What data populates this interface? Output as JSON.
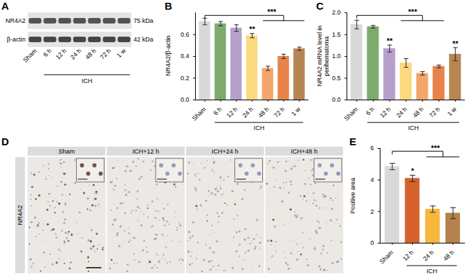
{
  "chart_data": [
    {
      "panel": "B",
      "type": "bar",
      "categories": [
        "Sham",
        "6 h",
        "12 h",
        "24 h",
        "48 h",
        "72 h",
        "1 w"
      ],
      "values": [
        0.72,
        0.7,
        0.66,
        0.59,
        0.29,
        0.4,
        0.47
      ],
      "errors": [
        0.03,
        0.02,
        0.03,
        0.02,
        0.02,
        0.02,
        0.015
      ],
      "colors": [
        "#d9d9d9",
        "#7faa6e",
        "#b7a0cc",
        "#fdd980",
        "#f4a66a",
        "#e8834a",
        "#b78552"
      ],
      "y_label": "NR4A2/β-actin",
      "ylim": [
        0,
        0.8
      ],
      "yticks": [
        {
          "value": 0,
          "label": "0.0"
        },
        0.2,
        0.4,
        0.6
      ],
      "group": {
        "label": "ICH",
        "categories": [
          "6 h",
          "12 h",
          "24 h",
          "48 h",
          "72 h",
          "1 w"
        ]
      },
      "annotations": [
        {
          "text": "**",
          "category": "24 h"
        }
      ],
      "brackets": [
        {
          "text": "***",
          "from": "Sham",
          "to": [
            "48 h",
            "72 h",
            "1 w"
          ]
        }
      ]
    },
    {
      "panel": "C",
      "type": "bar",
      "categories": [
        "Sham",
        "6 h",
        "12 h",
        "24 h",
        "48 h",
        "72 h",
        "1 w"
      ],
      "values": [
        1.73,
        1.68,
        1.18,
        0.85,
        0.61,
        0.77,
        1.05
      ],
      "errors": [
        0.1,
        0.03,
        0.08,
        0.1,
        0.04,
        0.03,
        0.15
      ],
      "colors": [
        "#d9d9d9",
        "#7faa6e",
        "#b7a0cc",
        "#fdd980",
        "#f4a66a",
        "#e8834a",
        "#b78552"
      ],
      "y_label": "NR4A2 mRNA level in perihematoma",
      "ylim": [
        0,
        2.0
      ],
      "yticks": [
        {
          "value": 0,
          "label": "0.0"
        },
        0.5,
        {
          "value": 1,
          "label": "1.0"
        },
        1.5,
        {
          "value": 2,
          "label": "2.0"
        }
      ],
      "group": {
        "label": "ICH",
        "categories": [
          "6 h",
          "12 h",
          "24 h",
          "48 h",
          "72 h",
          "1 w"
        ]
      },
      "annotations": [
        {
          "text": "**",
          "category": "12 h"
        },
        {
          "text": "**",
          "category": "1 w"
        }
      ],
      "brackets": [
        {
          "text": "***",
          "from": "Sham",
          "to": [
            "24 h",
            "48 h",
            "72 h"
          ]
        }
      ]
    },
    {
      "panel": "E",
      "type": "bar",
      "categories": [
        "Sham",
        "12 h",
        "24 h",
        "48 h"
      ],
      "values": [
        4.85,
        4.1,
        2.15,
        1.9
      ],
      "errors": [
        0.2,
        0.2,
        0.2,
        0.35
      ],
      "colors": [
        "#d9d9d9",
        "#d4622a",
        "#f5b83d",
        "#b5824d"
      ],
      "y_label": "Positive area",
      "ylim": [
        0,
        6
      ],
      "yticks": [
        0,
        2,
        4,
        6
      ],
      "group": {
        "label": "ICH",
        "categories": [
          "12 h",
          "24 h",
          "48 h"
        ]
      },
      "annotations": [
        {
          "text": "*",
          "category": "12 h"
        }
      ],
      "brackets": [
        {
          "text": "***",
          "from": "Sham",
          "to": [
            "24 h",
            "48 h"
          ]
        }
      ]
    }
  ],
  "blot": {
    "panel": "A",
    "rows": [
      {
        "label": "NR4A2",
        "size": "75 kDa"
      },
      {
        "label": "β-actin",
        "size": "42 kDa"
      }
    ],
    "lanes": [
      "Sham",
      "6 h",
      "12 h",
      "24 h",
      "48 h",
      "72 h",
      "1 w"
    ],
    "group": {
      "label": "ICH",
      "lanes": [
        "6 h",
        "12 h",
        "24 h",
        "48 h",
        "72 h",
        "1 w"
      ]
    }
  },
  "ihc": {
    "panel": "D",
    "row_label": "NR4A2",
    "columns": [
      "Sham",
      "ICH+12 h",
      "ICH+24 h",
      "ICH+48 h"
    ]
  }
}
